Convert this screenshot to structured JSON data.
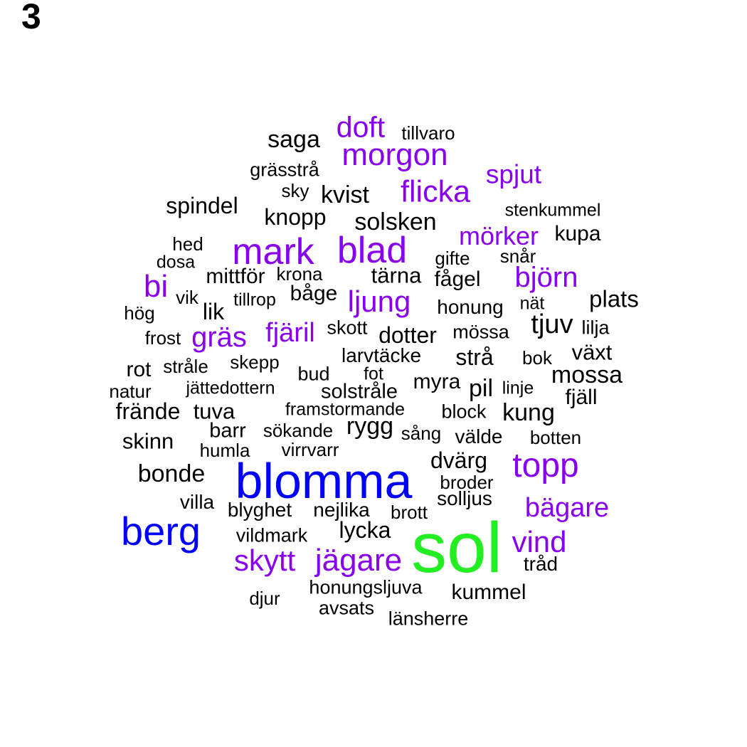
{
  "panel_label": "3",
  "colors": {
    "tier1": "#22ee22",
    "tier2": "#0000ff",
    "tier3": "#8800ee",
    "tier4": "#000000"
  },
  "words": [
    {
      "text": "sol",
      "tier": 1
    },
    {
      "text": "blomma",
      "tier": 2
    },
    {
      "text": "berg",
      "tier": 2
    },
    {
      "text": "mark",
      "tier": 3
    },
    {
      "text": "blad",
      "tier": 3
    },
    {
      "text": "topp",
      "tier": 3
    },
    {
      "text": "morgon",
      "tier": 3
    },
    {
      "text": "flicka",
      "tier": 3
    },
    {
      "text": "doft",
      "tier": 3
    },
    {
      "text": "spjut",
      "tier": 3
    },
    {
      "text": "mörker",
      "tier": 3
    },
    {
      "text": "björn",
      "tier": 3
    },
    {
      "text": "bi",
      "tier": 3
    },
    {
      "text": "ljung",
      "tier": 3
    },
    {
      "text": "gräs",
      "tier": 3
    },
    {
      "text": "fjäril",
      "tier": 3
    },
    {
      "text": "bägare",
      "tier": 3
    },
    {
      "text": "vind",
      "tier": 3
    },
    {
      "text": "skytt",
      "tier": 3
    },
    {
      "text": "jägare",
      "tier": 3
    },
    {
      "text": "saga",
      "tier": 4
    },
    {
      "text": "tillvaro",
      "tier": 4
    },
    {
      "text": "grässtrå",
      "tier": 4
    },
    {
      "text": "sky",
      "tier": 4
    },
    {
      "text": "kvist",
      "tier": 4
    },
    {
      "text": "spindel",
      "tier": 4
    },
    {
      "text": "knopp",
      "tier": 4
    },
    {
      "text": "solsken",
      "tier": 4
    },
    {
      "text": "stenkummel",
      "tier": 4
    },
    {
      "text": "kupa",
      "tier": 4
    },
    {
      "text": "hed",
      "tier": 4
    },
    {
      "text": "dosa",
      "tier": 4
    },
    {
      "text": "gifte",
      "tier": 4
    },
    {
      "text": "snår",
      "tier": 4
    },
    {
      "text": "mittför",
      "tier": 4
    },
    {
      "text": "krona",
      "tier": 4
    },
    {
      "text": "tärna",
      "tier": 4
    },
    {
      "text": "fågel",
      "tier": 4
    },
    {
      "text": "vik",
      "tier": 4
    },
    {
      "text": "tillrop",
      "tier": 4
    },
    {
      "text": "båge",
      "tier": 4
    },
    {
      "text": "plats",
      "tier": 4
    },
    {
      "text": "hög",
      "tier": 4
    },
    {
      "text": "lik",
      "tier": 4
    },
    {
      "text": "honung",
      "tier": 4
    },
    {
      "text": "nät",
      "tier": 4
    },
    {
      "text": "tjuv",
      "tier": 4
    },
    {
      "text": "frost",
      "tier": 4
    },
    {
      "text": "skott",
      "tier": 4
    },
    {
      "text": "dotter",
      "tier": 4
    },
    {
      "text": "mössa",
      "tier": 4
    },
    {
      "text": "lilja",
      "tier": 4
    },
    {
      "text": "larvtäcke",
      "tier": 4
    },
    {
      "text": "strå",
      "tier": 4
    },
    {
      "text": "bok",
      "tier": 4
    },
    {
      "text": "växt",
      "tier": 4
    },
    {
      "text": "rot",
      "tier": 4
    },
    {
      "text": "stråle",
      "tier": 4
    },
    {
      "text": "skepp",
      "tier": 4
    },
    {
      "text": "bud",
      "tier": 4
    },
    {
      "text": "fot",
      "tier": 4
    },
    {
      "text": "mossa",
      "tier": 4
    },
    {
      "text": "natur",
      "tier": 4
    },
    {
      "text": "jättedottern",
      "tier": 4
    },
    {
      "text": "solstråle",
      "tier": 4
    },
    {
      "text": "myra",
      "tier": 4
    },
    {
      "text": "pil",
      "tier": 4
    },
    {
      "text": "linje",
      "tier": 4
    },
    {
      "text": "fjäll",
      "tier": 4
    },
    {
      "text": "frände",
      "tier": 4
    },
    {
      "text": "tuva",
      "tier": 4
    },
    {
      "text": "framstormande",
      "tier": 4
    },
    {
      "text": "block",
      "tier": 4
    },
    {
      "text": "kung",
      "tier": 4
    },
    {
      "text": "barr",
      "tier": 4
    },
    {
      "text": "sökande",
      "tier": 4
    },
    {
      "text": "rygg",
      "tier": 4
    },
    {
      "text": "sång",
      "tier": 4
    },
    {
      "text": "välde",
      "tier": 4
    },
    {
      "text": "botten",
      "tier": 4
    },
    {
      "text": "skinn",
      "tier": 4
    },
    {
      "text": "humla",
      "tier": 4
    },
    {
      "text": "virrvarr",
      "tier": 4
    },
    {
      "text": "dvärg",
      "tier": 4
    },
    {
      "text": "bonde",
      "tier": 4
    },
    {
      "text": "broder",
      "tier": 4
    },
    {
      "text": "solljus",
      "tier": 4
    },
    {
      "text": "villa",
      "tier": 4
    },
    {
      "text": "blyghet",
      "tier": 4
    },
    {
      "text": "nejlika",
      "tier": 4
    },
    {
      "text": "brott",
      "tier": 4
    },
    {
      "text": "lycka",
      "tier": 4
    },
    {
      "text": "vildmark",
      "tier": 4
    },
    {
      "text": "tråd",
      "tier": 4
    },
    {
      "text": "honungsljuva",
      "tier": 4
    },
    {
      "text": "kummel",
      "tier": 4
    },
    {
      "text": "djur",
      "tier": 4
    },
    {
      "text": "avsats",
      "tier": 4
    },
    {
      "text": "länsherre",
      "tier": 4
    }
  ]
}
